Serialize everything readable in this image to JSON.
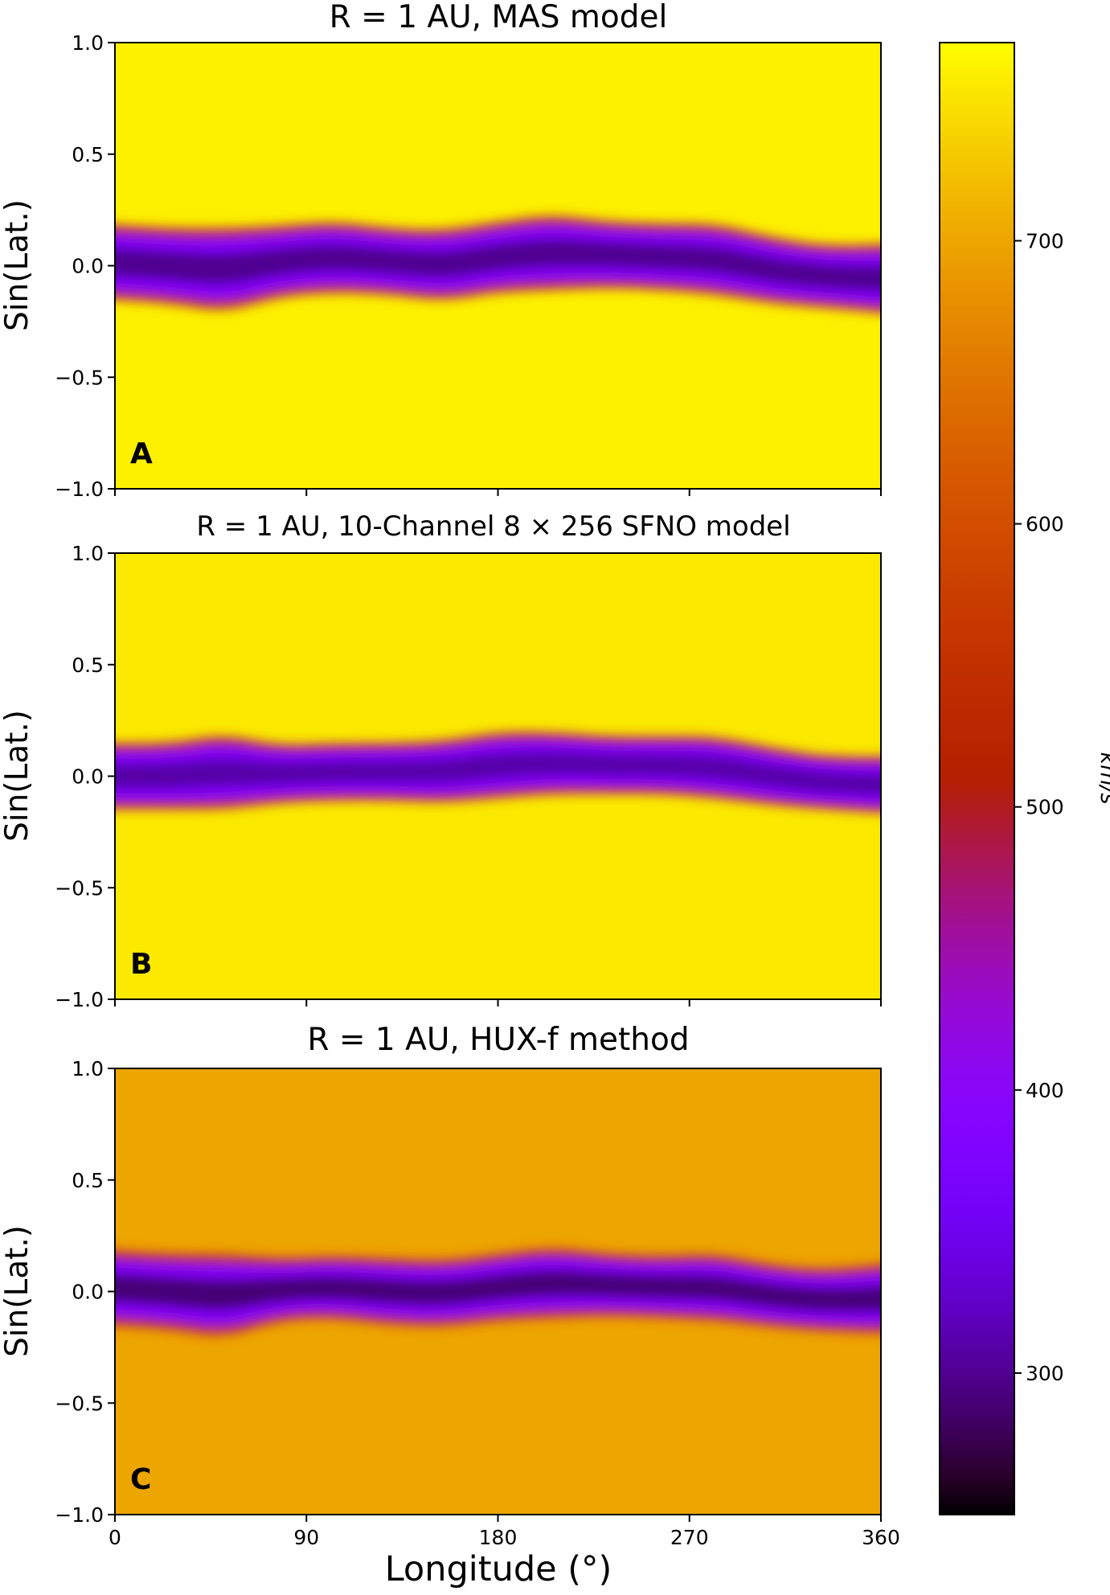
{
  "figure": {
    "xlabel": "Longitude (°)",
    "colorbar_label": "km/s"
  },
  "chart_data": [
    {
      "type": "heatmap",
      "panel": "A",
      "title": "R = 1 AU, MAS model",
      "xlabel": "",
      "ylabel": "Sin(Lat.)",
      "x_range": [
        0,
        360
      ],
      "y_range": [
        -1.0,
        1.0
      ],
      "x_ticks": [
        "0",
        "90",
        "180",
        "270",
        "360"
      ],
      "x_tick_values": [
        0,
        90,
        180,
        270,
        360
      ],
      "y_ticks": [
        "1.0",
        "0.5",
        "0.0",
        "−0.5",
        "−1.0"
      ],
      "y_tick_values": [
        1.0,
        0.5,
        0.0,
        -0.5,
        -1.0
      ],
      "background_speed_kms": 760,
      "slow_wind_band": {
        "center_sinlat": [
          0.02,
          0.0,
          -0.02,
          0.02,
          0.04,
          0.02,
          0.0,
          0.04,
          0.06,
          0.05,
          0.04,
          0.03,
          -0.02,
          -0.05,
          -0.06
        ],
        "halfwidth_sinlat": [
          0.17,
          0.17,
          0.19,
          0.16,
          0.16,
          0.15,
          0.16,
          0.16,
          0.17,
          0.15,
          0.15,
          0.16,
          0.15,
          0.14,
          0.16
        ],
        "core_speed_kms": 300
      }
    },
    {
      "type": "heatmap",
      "panel": "B",
      "title": "R = 1 AU, 10-Channel 8 × 256 SFNO model",
      "xlabel": "",
      "ylabel": "Sin(Lat.)",
      "x_range": [
        0,
        360
      ],
      "y_range": [
        -1.0,
        1.0
      ],
      "x_ticks": [
        "0",
        "90",
        "180",
        "270",
        "360"
      ],
      "x_tick_values": [
        0,
        90,
        180,
        270,
        360
      ],
      "y_ticks": [
        "1.0",
        "0.5",
        "0.0",
        "−0.5",
        "−1.0"
      ],
      "y_tick_values": [
        1.0,
        0.5,
        0.0,
        -0.5,
        -1.0
      ],
      "background_speed_kms": 755,
      "slow_wind_band": {
        "center_sinlat": [
          0.0,
          0.0,
          0.02,
          0.01,
          0.02,
          0.02,
          0.02,
          0.05,
          0.06,
          0.05,
          0.05,
          0.04,
          0.0,
          -0.03,
          -0.04
        ],
        "halfwidth_sinlat": [
          0.15,
          0.15,
          0.17,
          0.13,
          0.13,
          0.13,
          0.14,
          0.15,
          0.14,
          0.13,
          0.13,
          0.14,
          0.13,
          0.12,
          0.13
        ],
        "core_speed_kms": 310
      }
    },
    {
      "type": "heatmap",
      "panel": "C",
      "title": "R = 1 AU, HUX-f method",
      "xlabel": "Longitude (°)",
      "ylabel": "Sin(Lat.)",
      "x_range": [
        0,
        360
      ],
      "y_range": [
        -1.0,
        1.0
      ],
      "x_ticks": [
        "0",
        "90",
        "180",
        "270",
        "360"
      ],
      "x_tick_values": [
        0,
        90,
        180,
        270,
        360
      ],
      "y_ticks": [
        "1.0",
        "0.5",
        "0.0",
        "−0.5",
        "−1.0"
      ],
      "y_tick_values": [
        1.0,
        0.5,
        0.0,
        -0.5,
        -1.0
      ],
      "background_speed_kms": 700,
      "slow_wind_band": {
        "center_sinlat": [
          0.02,
          0.0,
          -0.02,
          0.01,
          0.02,
          0.0,
          -0.01,
          0.02,
          0.04,
          0.03,
          0.02,
          0.02,
          -0.02,
          -0.04,
          -0.03
        ],
        "halfwidth_sinlat": [
          0.17,
          0.17,
          0.19,
          0.14,
          0.14,
          0.15,
          0.15,
          0.15,
          0.16,
          0.14,
          0.14,
          0.15,
          0.14,
          0.14,
          0.16
        ],
        "core_speed_kms": 290
      }
    },
    {
      "type": "colorbar",
      "label": "km/s",
      "range_kms": [
        250,
        770
      ],
      "tick_labels": [
        "300",
        "400",
        "500",
        "600",
        "700"
      ],
      "tick_values": [
        300,
        400,
        500,
        600,
        700
      ],
      "colormap": "gnuplot"
    }
  ]
}
